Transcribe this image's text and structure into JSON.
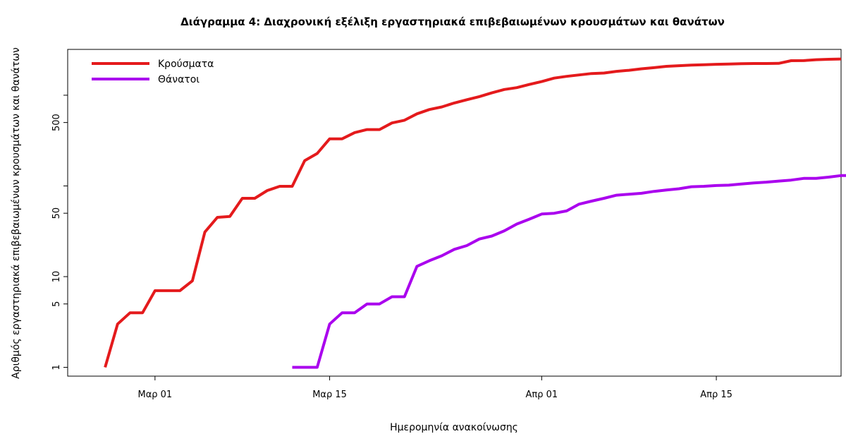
{
  "chart_data": {
    "type": "line",
    "title": "Διάγραμμα 4: Διαχρονική εξέλιξη εργαστηριακά επιβεβαιωμένων κρουσμάτων και θανάτων",
    "xlabel": "Ημερομηνία ανακοίνωσης",
    "ylabel": "Αριθμός εργαστηριακά επιβεβαιωμένων κρουσμάτων και θανάτων",
    "y_scale": "log",
    "ylim": [
      0.8,
      3200
    ],
    "xlim": [
      "2020-02-23",
      "2020-04-25"
    ],
    "x_ticks": [
      {
        "date": "2020-03-01",
        "label": "Μαρ 01"
      },
      {
        "date": "2020-03-15",
        "label": "Μαρ 15"
      },
      {
        "date": "2020-04-01",
        "label": "Απρ 01"
      },
      {
        "date": "2020-04-15",
        "label": "Απρ 15"
      }
    ],
    "y_ticks": [
      {
        "value": 1,
        "label": "1"
      },
      {
        "value": 5,
        "label": "5"
      },
      {
        "value": 10,
        "label": "10"
      },
      {
        "value": 50,
        "label": "50"
      },
      {
        "value": 100,
        "label": ""
      },
      {
        "value": 500,
        "label": "500"
      },
      {
        "value": 1000,
        "label": ""
      }
    ],
    "legend_position": "top-left",
    "series": [
      {
        "name": "Κρούσματα",
        "color": "#e41a1c",
        "start_date": "2020-02-26",
        "values": [
          1,
          3,
          4,
          4,
          7,
          7,
          7,
          9,
          31,
          45,
          46,
          73,
          73,
          89,
          99,
          99,
          190,
          228,
          331,
          331,
          387,
          418,
          418,
          495,
          530,
          624,
          695,
          743,
          821,
          892,
          966,
          1061,
          1156,
          1212,
          1314,
          1415,
          1544,
          1613,
          1673,
          1735,
          1755,
          1832,
          1884,
          1955,
          2011,
          2081,
          2114,
          2145,
          2170,
          2192,
          2207,
          2224,
          2235,
          2235,
          2245,
          2401,
          2408,
          2463,
          2490,
          2506
        ]
      },
      {
        "name": "Θάνατοι",
        "color": "#aa00ee",
        "start_date": "2020-03-12",
        "values": [
          1,
          1,
          1,
          3,
          4,
          4,
          5,
          5,
          6,
          6,
          13,
          15,
          17,
          20,
          22,
          26,
          28,
          32,
          38,
          43,
          49,
          50,
          53,
          63,
          68,
          73,
          79,
          81,
          83,
          87,
          90,
          93,
          98,
          99,
          101,
          102,
          105,
          108,
          110,
          113,
          116,
          121,
          121,
          125,
          130,
          130
        ]
      }
    ]
  }
}
